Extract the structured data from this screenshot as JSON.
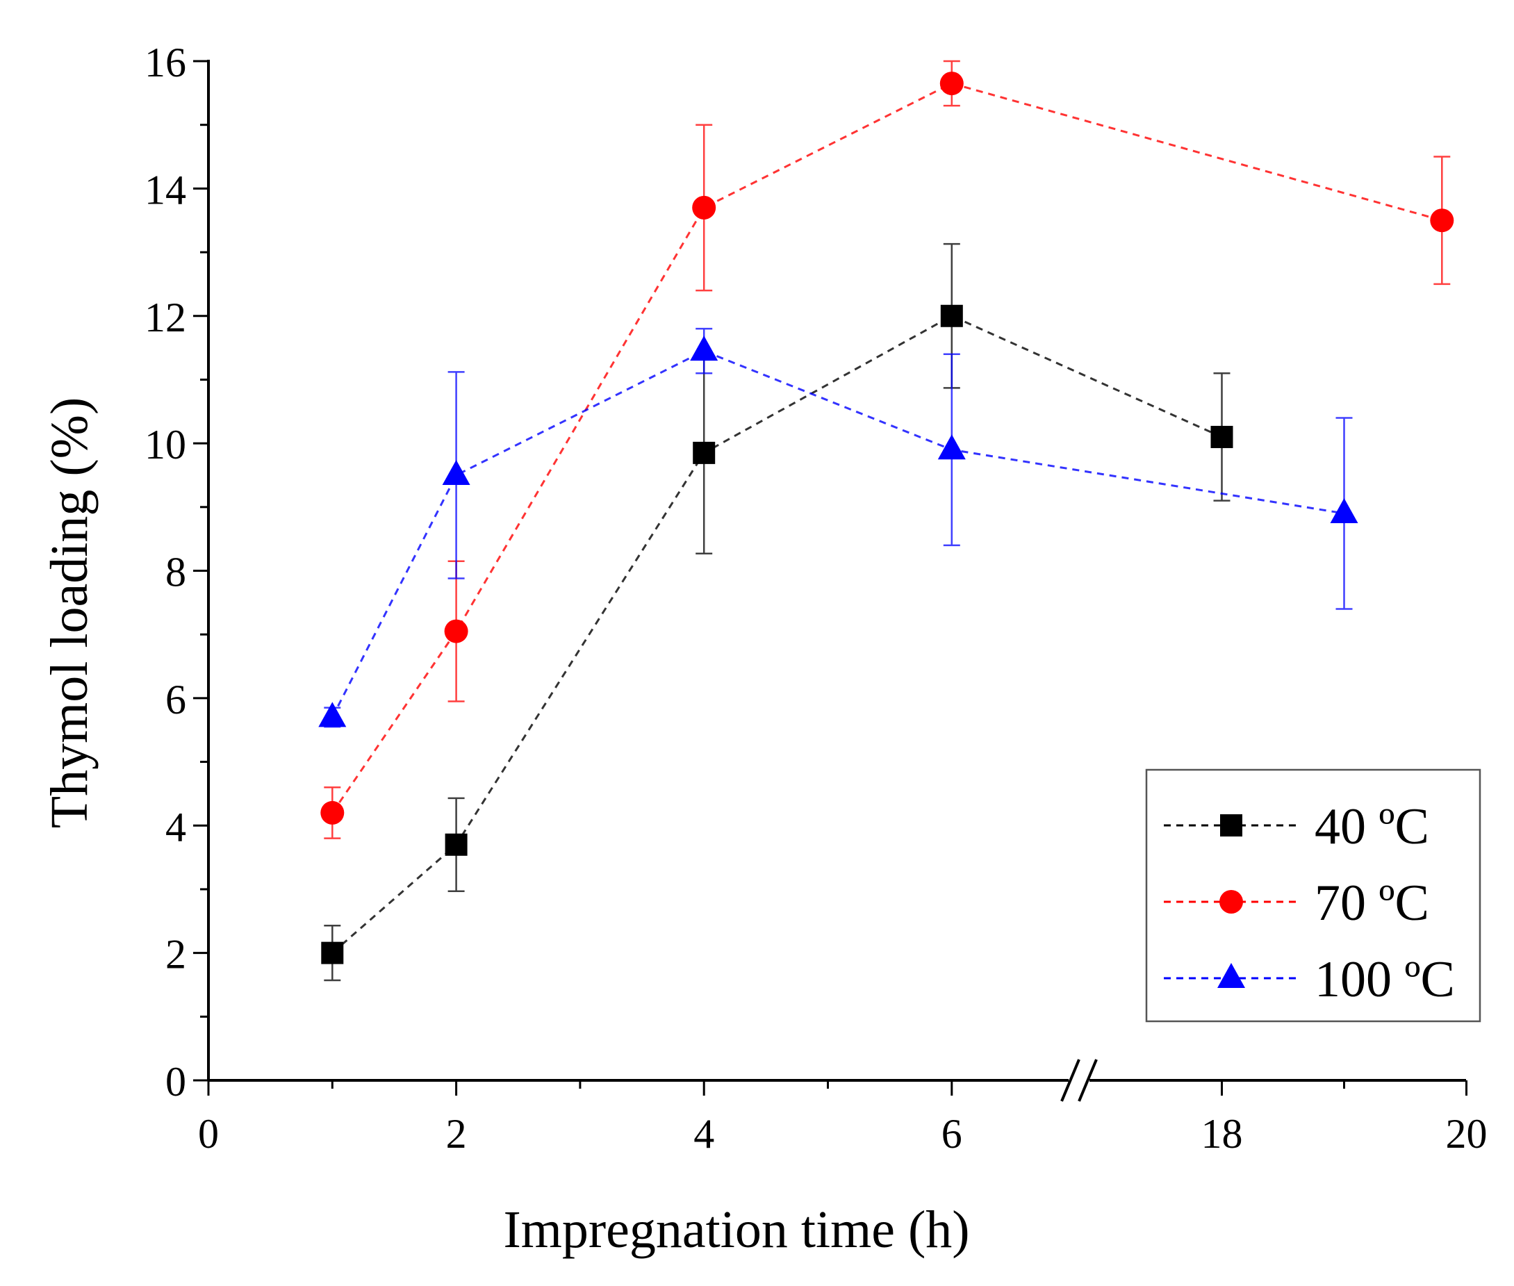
{
  "chart_data": {
    "type": "scatter",
    "title": "",
    "xlabel": "Impregnation time (h)",
    "ylabel": "Thymol loading (%)",
    "ylim": [
      0,
      16
    ],
    "x_axis_break": "between 6 and 18",
    "x_tick_labels": [
      "0",
      "2",
      "4",
      "6",
      "18",
      "20"
    ],
    "y_tick_labels": [
      "0",
      "2",
      "4",
      "6",
      "8",
      "10",
      "12",
      "14",
      "16"
    ],
    "legend_position": "lower-right",
    "series": [
      {
        "name": "40 ºC",
        "color": "#000000",
        "marker": "square",
        "x": [
          1,
          2,
          4,
          6,
          18
        ],
        "y": [
          2.0,
          3.7,
          9.85,
          12.0,
          10.1
        ],
        "error": [
          0.43,
          0.73,
          1.58,
          1.13,
          1.0
        ]
      },
      {
        "name": "70 ºC",
        "color": "#ff0000",
        "marker": "circle",
        "x": [
          1,
          2,
          4,
          6,
          19.8
        ],
        "y": [
          4.2,
          7.05,
          13.7,
          15.65,
          13.5
        ],
        "error": [
          0.4,
          1.1,
          1.3,
          0.35,
          1.0
        ]
      },
      {
        "name": "100 ºC",
        "color": "#0000ff",
        "marker": "triangle",
        "x": [
          1,
          2,
          4,
          6,
          19
        ],
        "y": [
          5.7,
          9.5,
          11.45,
          9.9,
          8.9
        ],
        "error": [
          0.15,
          1.62,
          0.35,
          1.5,
          1.5
        ]
      }
    ]
  }
}
